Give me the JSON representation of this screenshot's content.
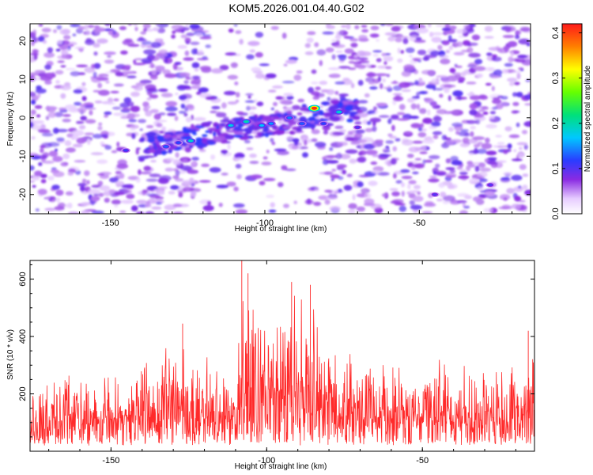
{
  "title": "KOM5.2026.001.04.40.G02",
  "chart_data": [
    {
      "type": "heatmap",
      "xlabel": "Height of straight line (km)",
      "ylabel": "Frequency (Hz)",
      "xlim": [
        -176,
        -14
      ],
      "ylim": [
        -25,
        24.5
      ],
      "xticks": [
        -150,
        -100,
        -50
      ],
      "yticks": [
        -20,
        -10,
        0,
        10,
        20
      ],
      "colorbar": {
        "label": "Normalized spectral amplitude",
        "range": [
          0,
          0.42
        ],
        "ticks": [
          "0.0",
          "0.1",
          "0.2",
          "0.3",
          "0.4"
        ],
        "tick_values": [
          0,
          0.1,
          0.2,
          0.3,
          0.4
        ]
      },
      "features": {
        "background": "speckled purple/violet noise over the whole panel",
        "hot_band": "diagonal band from about -135 km, -7 Hz to about -75 km, 3 Hz",
        "peak": {
          "x": -84,
          "y": 2.5,
          "value": 0.41
        }
      },
      "hot_spots": [
        {
          "x": -145,
          "y": -8.5,
          "v": 0.11
        },
        {
          "x": -132,
          "y": -7.5,
          "v": 0.13
        },
        {
          "x": -128,
          "y": -6.5,
          "v": 0.12
        },
        {
          "x": -124,
          "y": -6.0,
          "v": 0.19
        },
        {
          "x": -111,
          "y": -2.0,
          "v": 0.18
        },
        {
          "x": -106,
          "y": -1.0,
          "v": 0.2
        },
        {
          "x": -101,
          "y": -2.0,
          "v": 0.17
        },
        {
          "x": -98,
          "y": -1.5,
          "v": 0.15
        },
        {
          "x": -92,
          "y": 0.0,
          "v": 0.14
        },
        {
          "x": -88,
          "y": -1.5,
          "v": 0.13
        },
        {
          "x": -84,
          "y": 2.5,
          "v": 0.41
        },
        {
          "x": -81,
          "y": -1.5,
          "v": 0.12
        },
        {
          "x": -76,
          "y": 1.5,
          "v": 0.19
        },
        {
          "x": -70,
          "y": -2.5,
          "v": 0.1
        },
        {
          "x": -45,
          "y": -20.0,
          "v": 0.1
        },
        {
          "x": -27,
          "y": -17.5,
          "v": 0.1
        }
      ]
    },
    {
      "type": "line",
      "xlabel": "Height of straight line (km)",
      "ylabel": "SNR (10 * v/v)",
      "xlim": [
        -176,
        -14
      ],
      "ylim": [
        0,
        665
      ],
      "xticks": [
        -150,
        -100,
        -50
      ],
      "yticks": [
        200,
        400,
        600
      ],
      "series": [
        {
          "color": "#ff2a2a",
          "x_start": -176,
          "x_end": -14,
          "envelope": [
            {
              "x": -176,
              "y": 270
            },
            {
              "x": -160,
              "y": 290
            },
            {
              "x": -150,
              "y": 280
            },
            {
              "x": -140,
              "y": 310
            },
            {
              "x": -130,
              "y": 420
            },
            {
              "x": -120,
              "y": 380
            },
            {
              "x": -110,
              "y": 300
            },
            {
              "x": -108,
              "y": 665
            },
            {
              "x": -104,
              "y": 560
            },
            {
              "x": -100,
              "y": 500
            },
            {
              "x": -92,
              "y": 590
            },
            {
              "x": -86,
              "y": 580
            },
            {
              "x": -82,
              "y": 450
            },
            {
              "x": -75,
              "y": 380
            },
            {
              "x": -65,
              "y": 330
            },
            {
              "x": -55,
              "y": 300
            },
            {
              "x": -45,
              "y": 360
            },
            {
              "x": -30,
              "y": 320
            },
            {
              "x": -20,
              "y": 330
            },
            {
              "x": -14,
              "y": 420
            }
          ],
          "notable_peaks": [
            {
              "x": -108,
              "y": 665
            },
            {
              "x": -106,
              "y": 620
            },
            {
              "x": -92,
              "y": 590
            },
            {
              "x": -86,
              "y": 580
            },
            {
              "x": -127,
              "y": 445
            },
            {
              "x": -16,
              "y": 420
            }
          ]
        }
      ]
    }
  ]
}
